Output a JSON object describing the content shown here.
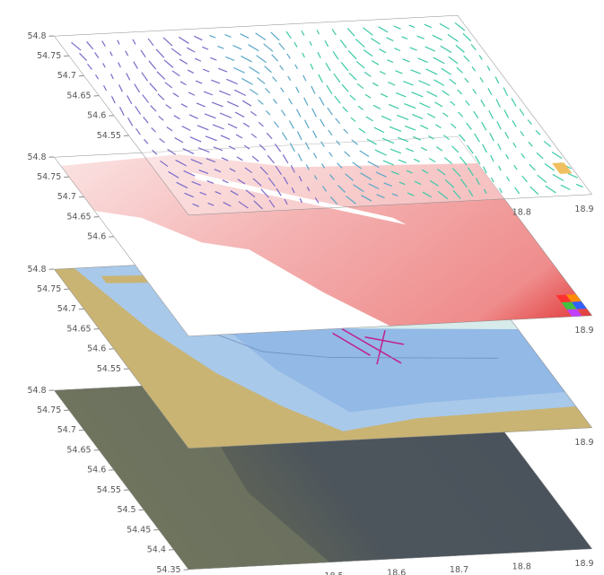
{
  "layers": [
    {
      "lat_labels": [
        "54.8",
        "54.75",
        "54.7",
        "54.65",
        "54.6",
        "54.55"
      ],
      "lon_labels": [
        "18.8",
        "18.9"
      ]
    },
    {
      "lat_labels": [
        "54.8",
        "54.75",
        "54.7",
        "54.65",
        "54.6"
      ],
      "lon_labels": [
        "18.9"
      ]
    },
    {
      "lat_labels": [
        "54.8",
        "54.75",
        "54.7",
        "54.65",
        "54.6",
        "54.55"
      ],
      "lon_labels": [
        "18.9"
      ]
    },
    {
      "lat_labels": [
        "54.8",
        "54.75",
        "54.7",
        "54.65",
        "54.6",
        "54.55",
        "54.5",
        "54.45",
        "54.4",
        "54.35"
      ],
      "lon_labels": [
        "18.5",
        "18.6",
        "18.7",
        "18.8",
        "18.9"
      ]
    }
  ]
}
